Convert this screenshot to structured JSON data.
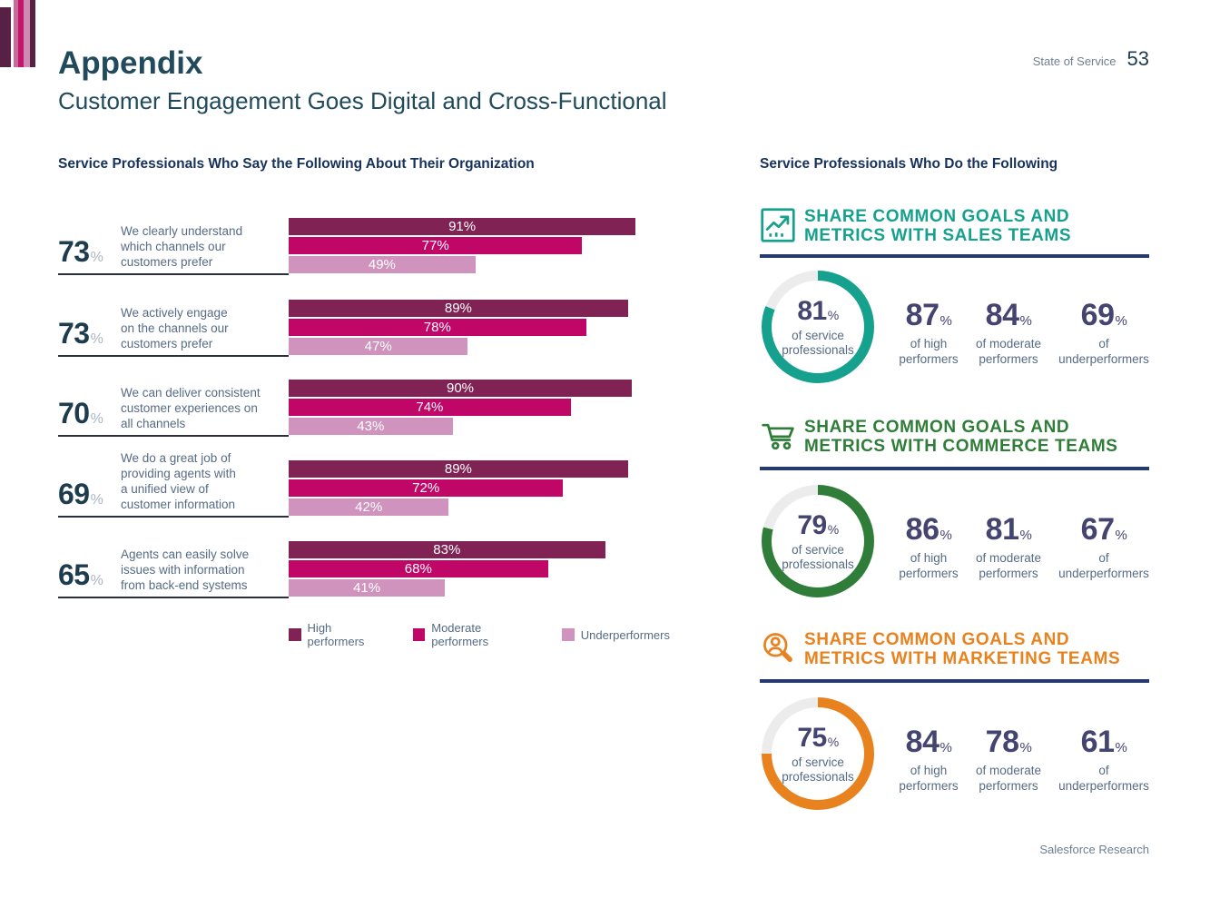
{
  "units": {
    "percent": "%"
  },
  "colors": {
    "heading": "#214b5c",
    "navy": "#16325c",
    "gray": "#566b85",
    "indigo": "#444470",
    "slate": "#1d3d4f",
    "muted": "#6d7f92",
    "rule": "#243a70",
    "underline": "#2a3042",
    "track": "#ececec",
    "pct-light": "#a9b6c2"
  },
  "brand": {
    "stripes": [
      "#572145",
      "#c76b9d",
      "#c2176b",
      "#cf8ab4",
      "#572145"
    ]
  },
  "header": {
    "title": "Appendix",
    "subtitle": "Customer Engagement Goes Digital and Cross-Functional",
    "report_label": "State of Service",
    "page_number": "53"
  },
  "footer": {
    "credit": "Salesforce Research"
  },
  "left_section": {
    "title": "Service Professionals Who Say the Following About Their Organization",
    "legend": [
      {
        "label": "High performers",
        "color": "#812254"
      },
      {
        "label": "Moderate performers",
        "color": "#c00768"
      },
      {
        "label": "Underperformers",
        "color": "#cf93bd"
      }
    ],
    "rows": [
      {
        "total": 73,
        "label": "We clearly understand\nwhich channels our\ncustomers prefer",
        "high": 91,
        "moderate": 77,
        "under": 49
      },
      {
        "total": 73,
        "label": "We actively engage\non the channels our\ncustomers prefer",
        "high": 89,
        "moderate": 78,
        "under": 47
      },
      {
        "total": 70,
        "label": "We can deliver consistent\ncustomer experiences on\nall channels",
        "high": 90,
        "moderate": 74,
        "under": 43
      },
      {
        "total": 69,
        "label": "We do a great job of\nproviding agents with\na unified view of\ncustomer information",
        "high": 89,
        "moderate": 72,
        "under": 42
      },
      {
        "total": 65,
        "label": "Agents can easily solve\nissues with information\nfrom back-end systems",
        "high": 83,
        "moderate": 68,
        "under": 41
      }
    ]
  },
  "right_section": {
    "title": "Service Professionals Who Do the Following",
    "blocks": [
      {
        "icon": "chart-up-icon",
        "accent": "#16a08e",
        "title": "SHARE COMMON GOALS AND\nMETRICS WITH SALES TEAMS",
        "donut_pct": 81,
        "donut_label": "of service\nprofessionals",
        "stats": [
          {
            "value": 87,
            "label": "of high\nperformers"
          },
          {
            "value": 84,
            "label": "of moderate\nperformers"
          },
          {
            "value": 69,
            "label": "of\nunderperformers"
          }
        ]
      },
      {
        "icon": "cart-icon",
        "accent": "#2f7d38",
        "title": "SHARE COMMON GOALS AND\nMETRICS WITH COMMERCE TEAMS",
        "donut_pct": 79,
        "donut_label": "of service\nprofessionals",
        "stats": [
          {
            "value": 86,
            "label": "of high\nperformers"
          },
          {
            "value": 81,
            "label": "of moderate\nperformers"
          },
          {
            "value": 67,
            "label": "of\nunderperformers"
          }
        ]
      },
      {
        "icon": "person-search-icon",
        "accent": "#e8821e",
        "title": "SHARE COMMON GOALS AND\nMETRICS WITH MARKETING TEAMS",
        "donut_pct": 75,
        "donut_label": "of service\nprofessionals",
        "stats": [
          {
            "value": 84,
            "label": "of high\nperformers"
          },
          {
            "value": 78,
            "label": "of moderate\nperformers"
          },
          {
            "value": 61,
            "label": "of\nunderperformers"
          }
        ]
      }
    ]
  },
  "chart_data": [
    {
      "type": "bar",
      "orientation": "horizontal",
      "title": "Service Professionals Who Say the Following About Their Organization",
      "categories": [
        "We clearly understand which channels our customers prefer",
        "We actively engage on the channels our customers prefer",
        "We can deliver consistent customer experiences on all channels",
        "We do a great job of providing agents with a unified view of customer information",
        "Agents can easily solve issues with information from back-end systems"
      ],
      "category_totals": [
        73,
        73,
        70,
        69,
        65
      ],
      "series": [
        {
          "name": "High performers",
          "color": "#812254",
          "values": [
            91,
            89,
            90,
            89,
            83
          ]
        },
        {
          "name": "Moderate performers",
          "color": "#c00768",
          "values": [
            77,
            78,
            74,
            72,
            68
          ]
        },
        {
          "name": "Underperformers",
          "color": "#cf93bd",
          "values": [
            49,
            47,
            43,
            42,
            41
          ]
        }
      ],
      "xlim": [
        0,
        100
      ],
      "unit": "%",
      "legend_position": "bottom",
      "grid": false
    },
    {
      "type": "donut",
      "title": "Service Professionals Who Do the Following",
      "groups": [
        {
          "label": "Share common goals and metrics with sales teams",
          "service_professionals": 81,
          "high_performers": 87,
          "moderate_performers": 84,
          "underperformers": 69
        },
        {
          "label": "Share common goals and metrics with commerce teams",
          "service_professionals": 79,
          "high_performers": 86,
          "moderate_performers": 81,
          "underperformers": 67
        },
        {
          "label": "Share common goals and metrics with marketing teams",
          "service_professionals": 75,
          "high_performers": 84,
          "moderate_performers": 78,
          "underperformers": 61
        }
      ],
      "unit": "%"
    }
  ]
}
